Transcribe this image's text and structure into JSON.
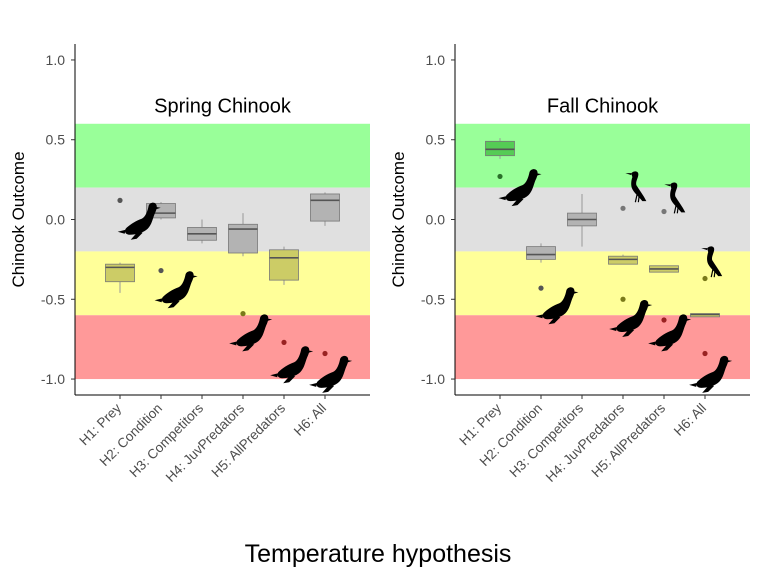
{
  "chart_data": {
    "type": "boxplot",
    "xlabel": "Temperature hypothesis",
    "ylim": [
      -1.1,
      1.1
    ],
    "yticks": [
      "1.0",
      "0.5",
      "0.0",
      "-0.5",
      "-1.0"
    ],
    "ytick_values": [
      1.0,
      0.5,
      0.0,
      -0.5,
      -1.0
    ],
    "bands": [
      {
        "from": 0.2,
        "to": 0.6,
        "color": "#99ff99"
      },
      {
        "from": -0.2,
        "to": 0.2,
        "color": "#e0e0e0"
      },
      {
        "from": -0.6,
        "to": -0.2,
        "color": "#ffff99"
      },
      {
        "from": -1.0,
        "to": -0.6,
        "color": "#ff9999"
      }
    ],
    "categories": [
      "H1: Prey",
      "H2: Condition",
      "H3: Competitors",
      "H4: JuvPredators",
      "H5: AllPredators",
      "H6: All"
    ],
    "panels": [
      {
        "title": "Spring Chinook",
        "ylabel": "Chinook Outcome",
        "boxes": [
          {
            "min": -0.46,
            "q1": -0.39,
            "median": -0.3,
            "q3": -0.28,
            "max": -0.27,
            "fill": "#cccc66"
          },
          {
            "min": 0.0,
            "q1": 0.01,
            "median": 0.04,
            "q3": 0.1,
            "max": 0.11,
            "fill": "#b3b3b3"
          },
          {
            "min": -0.15,
            "q1": -0.13,
            "median": -0.09,
            "q3": -0.05,
            "max": 0.0,
            "fill": "#b3b3b3"
          },
          {
            "min": -0.23,
            "q1": -0.21,
            "median": -0.06,
            "q3": -0.03,
            "max": 0.04,
            "fill": "#b3b3b3"
          },
          {
            "min": -0.41,
            "q1": -0.38,
            "median": -0.24,
            "q3": -0.19,
            "max": -0.17,
            "fill": "#cccc66"
          },
          {
            "min": -0.04,
            "q1": -0.01,
            "median": 0.12,
            "q3": 0.16,
            "max": 0.17,
            "fill": "#b3b3b3"
          }
        ],
        "points": [
          {
            "cat": 1,
            "y": 0.12,
            "color": "#555555"
          },
          {
            "cat": 2,
            "y": -0.32,
            "color": "#555555"
          },
          {
            "cat": 4,
            "y": -0.59,
            "color": "#7a7a1a"
          },
          {
            "cat": 5,
            "y": -0.77,
            "color": "#992222"
          },
          {
            "cat": 6,
            "y": -0.84,
            "color": "#992222"
          }
        ],
        "icons": [
          {
            "type": "sea-lion",
            "cat": 1.48,
            "y": -0.02
          },
          {
            "type": "sea-lion",
            "cat": 2.38,
            "y": -0.45
          },
          {
            "type": "sea-lion",
            "cat": 4.2,
            "y": -0.72
          },
          {
            "type": "sea-lion",
            "cat": 5.2,
            "y": -0.92
          },
          {
            "type": "sea-lion",
            "cat": 6.15,
            "y": -0.98
          }
        ]
      },
      {
        "title": "Fall Chinook",
        "ylabel": "Chinook Outcome",
        "boxes": [
          {
            "min": 0.38,
            "q1": 0.4,
            "median": 0.44,
            "q3": 0.49,
            "max": 0.51,
            "fill": "#55cc55"
          },
          {
            "min": -0.27,
            "q1": -0.25,
            "median": -0.22,
            "q3": -0.17,
            "max": -0.15,
            "fill": "#b3b3b3"
          },
          {
            "min": -0.17,
            "q1": -0.04,
            "median": 0.0,
            "q3": 0.04,
            "max": 0.16,
            "fill": "#b3b3b3"
          },
          {
            "min": -0.28,
            "q1": -0.28,
            "median": -0.25,
            "q3": -0.23,
            "max": -0.22,
            "fill": "#cccc66"
          },
          {
            "min": -0.33,
            "q1": -0.33,
            "median": -0.31,
            "q3": -0.29,
            "max": -0.29,
            "fill": "#cccc66"
          },
          {
            "min": -0.61,
            "q1": -0.61,
            "median": -0.595,
            "q3": -0.59,
            "max": -0.59,
            "fill": "#cccc66"
          }
        ],
        "points": [
          {
            "cat": 1,
            "y": 0.27,
            "color": "#2a6f2a"
          },
          {
            "cat": 2,
            "y": -0.43,
            "color": "#555555"
          },
          {
            "cat": 4,
            "y": 0.07,
            "color": "#777777"
          },
          {
            "cat": 4,
            "y": -0.5,
            "color": "#7a7a1a"
          },
          {
            "cat": 5,
            "y": 0.05,
            "color": "#777777"
          },
          {
            "cat": 5,
            "y": -0.63,
            "color": "#992222"
          },
          {
            "cat": 6,
            "y": -0.37,
            "color": "#7a7a1a"
          },
          {
            "cat": 6,
            "y": -0.84,
            "color": "#992222"
          }
        ],
        "icons": [
          {
            "type": "sea-lion",
            "cat": 1.5,
            "y": 0.19
          },
          {
            "type": "sea-lion",
            "cat": 2.4,
            "y": -0.55
          },
          {
            "type": "sea-lion",
            "cat": 4.2,
            "y": -0.63
          },
          {
            "type": "sea-lion",
            "cat": 5.15,
            "y": -0.72
          },
          {
            "type": "sea-lion",
            "cat": 6.15,
            "y": -0.98
          },
          {
            "type": "cormorant",
            "cat": 4.35,
            "y": 0.19
          },
          {
            "type": "cormorant",
            "cat": 5.3,
            "y": 0.12
          },
          {
            "type": "cormorant",
            "cat": 6.2,
            "y": -0.28
          }
        ]
      }
    ]
  }
}
